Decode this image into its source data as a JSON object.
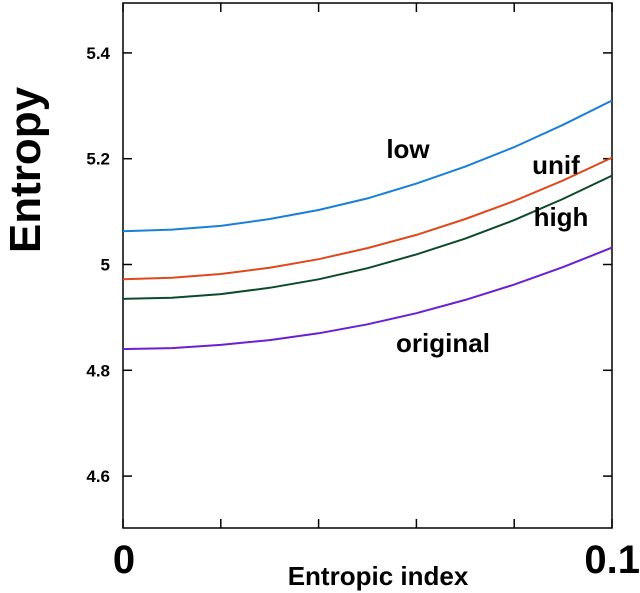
{
  "chart_data": {
    "type": "line",
    "title": "",
    "xlabel": "Entropic index",
    "ylabel": "Entropy",
    "xlim": [
      0,
      0.1
    ],
    "ylim": [
      4.5,
      5.5
    ],
    "x_tick_labels": [
      "0",
      "0.1"
    ],
    "y_ticks": [
      4.6,
      4.8,
      5,
      5.2,
      5.4
    ],
    "y_tick_labels": [
      "4.6",
      "4.8",
      "5",
      "5.2",
      "5.4"
    ],
    "grid": false,
    "legend": "none",
    "series": [
      {
        "name": "low",
        "color": "#1a7fd6",
        "x": [
          0,
          0.01,
          0.02,
          0.03,
          0.04,
          0.05,
          0.06,
          0.07,
          0.08,
          0.09,
          0.1
        ],
        "y": [
          5.063,
          5.066,
          5.073,
          5.086,
          5.103,
          5.125,
          5.153,
          5.185,
          5.222,
          5.264,
          5.31
        ]
      },
      {
        "name": "unif",
        "color": "#e0481c",
        "x": [
          0,
          0.01,
          0.02,
          0.03,
          0.04,
          0.05,
          0.06,
          0.07,
          0.08,
          0.09,
          0.1
        ],
        "y": [
          4.972,
          4.975,
          4.982,
          4.994,
          5.01,
          5.031,
          5.056,
          5.086,
          5.12,
          5.159,
          5.202
        ]
      },
      {
        "name": "high",
        "color": "#0d4a2a",
        "x": [
          0,
          0.01,
          0.02,
          0.03,
          0.04,
          0.05,
          0.06,
          0.07,
          0.08,
          0.09,
          0.1
        ],
        "y": [
          4.935,
          4.937,
          4.944,
          4.956,
          4.972,
          4.993,
          5.019,
          5.049,
          5.084,
          5.124,
          5.168
        ]
      },
      {
        "name": "original",
        "color": "#6a1fd0",
        "x": [
          0,
          0.01,
          0.02,
          0.03,
          0.04,
          0.05,
          0.06,
          0.07,
          0.08,
          0.09,
          0.1
        ],
        "y": [
          4.84,
          4.842,
          4.848,
          4.857,
          4.87,
          4.887,
          4.908,
          4.933,
          4.962,
          4.995,
          5.032
        ]
      }
    ]
  }
}
